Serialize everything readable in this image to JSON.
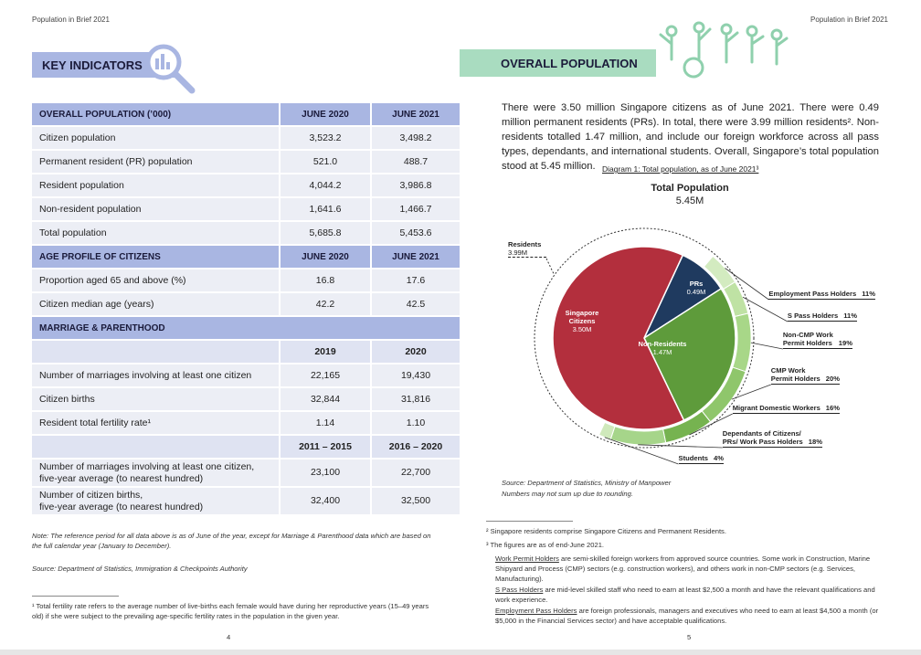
{
  "header": {
    "left": "Population in Brief 2021",
    "right": "Population in Brief 2021"
  },
  "left_page": {
    "banner": "KEY INDICATORS",
    "table": {
      "sections": [
        {
          "title": "OVERALL POPULATION (’000)",
          "columns": [
            "JUNE 2020",
            "JUNE 2021"
          ],
          "rows": [
            [
              "Citizen population",
              "3,523.2",
              "3,498.2"
            ],
            [
              "Permanent resident (PR) population",
              "521.0",
              "488.7"
            ],
            [
              "Resident population",
              "4,044.2",
              "3,986.8"
            ],
            [
              "Non-resident population",
              "1,641.6",
              "1,466.7"
            ],
            [
              "Total population",
              "5,685.8",
              "5,453.6"
            ]
          ]
        },
        {
          "title": "AGE PROFILE OF CITIZENS",
          "columns": [
            "JUNE 2020",
            "JUNE 2021"
          ],
          "rows": [
            [
              "Proportion aged 65 and above (%)",
              "16.8",
              "17.6"
            ],
            [
              "Citizen median age (years)",
              "42.2",
              "42.5"
            ]
          ]
        },
        {
          "title": "MARRIAGE & PARENTHOOD",
          "groups": [
            {
              "columns": [
                "2019",
                "2020"
              ],
              "rows": [
                [
                  "Number of marriages involving at least one citizen",
                  "22,165",
                  "19,430"
                ],
                [
                  "Citizen births",
                  "32,844",
                  "31,816"
                ],
                [
                  "Resident total fertility rate¹",
                  "1.14",
                  "1.10"
                ]
              ]
            },
            {
              "columns": [
                "2011 – 2015",
                "2016 – 2020"
              ],
              "rows": [
                [
                  [
                    "Number of marriages involving at least one citizen,",
                    "five-year average (to nearest hundred)"
                  ],
                  "23,100",
                  "22,700"
                ],
                [
                  [
                    "Number of citizen births,",
                    "five-year average (to nearest hundred)"
                  ],
                  "32,400",
                  "32,500"
                ]
              ]
            }
          ]
        }
      ]
    },
    "note": "Note: The reference period for all data above is as of June of the year, except for Marriage & Parenthood data which are based on the full calendar year (January to December).",
    "source": "Source: Department of Statistics, Immigration & Checkpoints Authority",
    "footnote": "¹  Total fertility rate refers to the average number of live-births each female would have during her reproductive years (15–49 years old) if she were subject to the prevailing age-specific fertility rates in the population in the given year.",
    "page": "4"
  },
  "right_page": {
    "banner": "OVERALL POPULATION",
    "paragraph": "There were 3.50 million Singapore citizens as of June 2021. There were 0.49 million permanent residents (PRs). In total, there were 3.99 million residents². Non-residents totalled 1.47 million, and include our foreign workforce across all pass types, dependants, and international students. Overall, Singapore’s total population stood at 5.45 million.",
    "diagram": {
      "caption": "Diagram 1: Total population, as of June 2021³",
      "title": "Total Population",
      "total": "5.45M",
      "slices": [
        {
          "label": "PRs",
          "value": 0.49,
          "value_label": "0.49M",
          "color": "#1f3a5f"
        },
        {
          "label": "Non-Residents",
          "value": 1.47,
          "value_label": "1.47M",
          "color": "#5e9b3b"
        },
        {
          "label": "Singapore Citizens",
          "value": 3.5,
          "value_label": "3.50M",
          "color": "#b32f3d"
        }
      ],
      "residents": {
        "label": "Residents",
        "value_label": "3.99M"
      },
      "ring": [
        {
          "label": "Employment Pass Holders",
          "value": 11,
          "value_label": "11%",
          "color": "#d3ebc0"
        },
        {
          "label": "S Pass Holders",
          "value": 11,
          "value_label": "11%",
          "color": "#bfe2a4"
        },
        {
          "label": [
            "Non-CMP Work",
            "Permit Holders"
          ],
          "value": 19,
          "value_label": "19%",
          "color": "#a8d788"
        },
        {
          "label": [
            "CMP Work",
            "Permit Holders"
          ],
          "value": 20,
          "value_label": "20%",
          "color": "#8fc66b"
        },
        {
          "label": "Migrant Domestic Workers",
          "value": 16,
          "value_label": "16%",
          "color": "#76b350"
        },
        {
          "label": [
            "Dependants of Citizens/",
            "PRs/ Work Pass Holders"
          ],
          "value": 18,
          "value_label": "18%",
          "color": "#a6d58a"
        },
        {
          "label": "Students",
          "value": 4,
          "value_label": "4%",
          "color": "#cfe9bb"
        }
      ],
      "source": "Source: Department of Statistics, Ministry of Manpower",
      "note": "Numbers may not sum up due to rounding."
    },
    "footnotes": [
      {
        "text": "²  Singapore residents comprise Singapore Citizens and Permanent Residents."
      },
      {
        "text": "³  The figures are as of end-June 2021.",
        "items": [
          {
            "term": "Work Permit Holders",
            "text": " are semi-skilled foreign workers from approved source countries. Some work in Construction, Marine Shipyard and Process (CMP) sectors (e.g. construction workers), and others work in non-CMP sectors (e.g. Services, Manufacturing)."
          },
          {
            "term": "S Pass Holders",
            "text": " are mid-level skilled staff who need to earn at least $2,500 a month and have the relevant qualifications and work experience."
          },
          {
            "term": "Employment Pass Holders",
            "text": " are foreign professionals, managers and executives who need to earn at least $4,500 a month (or $5,000 in the Financial Services sector) and have acceptable qualifications."
          }
        ]
      }
    ],
    "page": "5"
  }
}
